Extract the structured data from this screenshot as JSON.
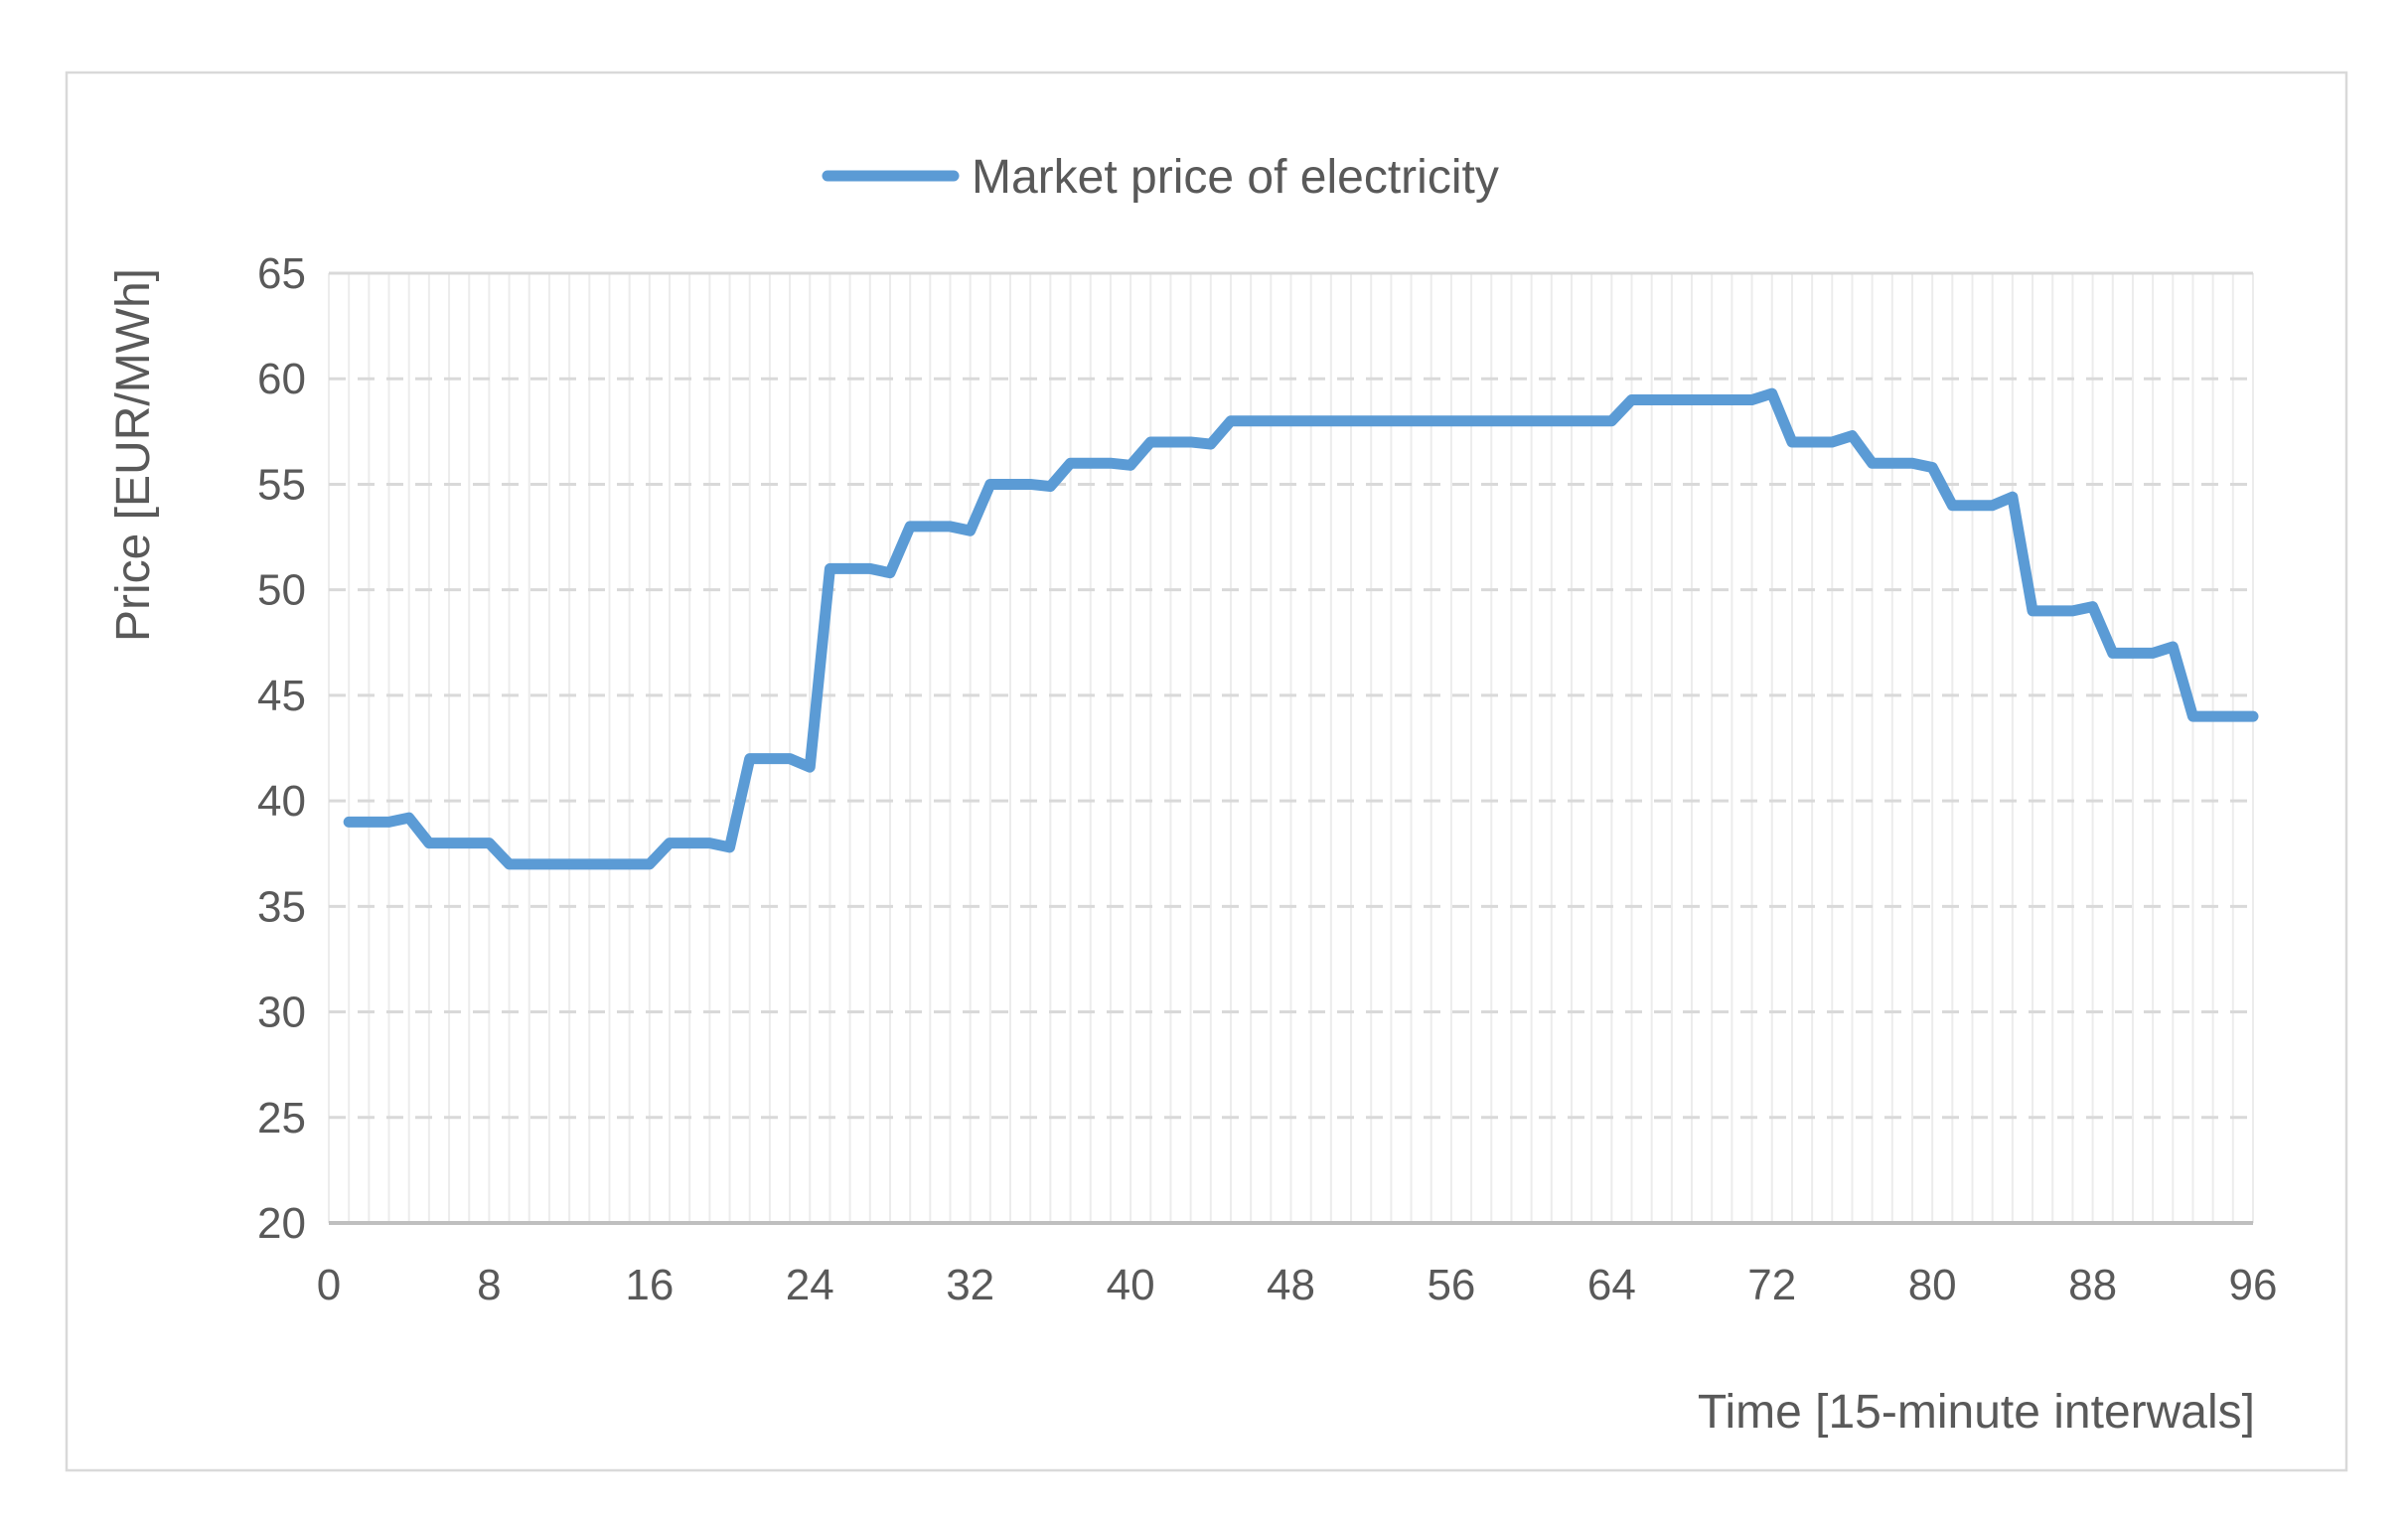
{
  "chart_style": {
    "line_color": "#5B9BD5",
    "text_color": "#595959",
    "gridline_color": "#D9D9D9",
    "minor_gridline_color": "#ECECEC",
    "axis_line_color": "#BFBFBF",
    "frame_border_color": "#D9D9D9",
    "background_color": "#FFFFFF"
  },
  "chart_data": {
    "type": "line",
    "title": "",
    "xlabel": "Time [15-minute interwals]",
    "ylabel": "Price [EUR/MWh]",
    "legend_entries": [
      "Market price of electricity"
    ],
    "legend_position": "top-center",
    "xlim": [
      0,
      96
    ],
    "ylim": [
      20,
      65
    ],
    "x_ticks": [
      0,
      8,
      16,
      24,
      32,
      40,
      48,
      56,
      64,
      72,
      80,
      88,
      96
    ],
    "y_ticks": [
      20,
      25,
      30,
      35,
      40,
      45,
      50,
      55,
      60,
      65
    ],
    "grid": "minor vertical gridlines every 1 unit; dashed horizontal gridlines every 5 units",
    "series": [
      {
        "name": "Market price of electricity",
        "x": [
          1,
          2,
          3,
          4,
          5,
          6,
          7,
          8,
          9,
          10,
          11,
          12,
          13,
          14,
          15,
          16,
          17,
          18,
          19,
          20,
          21,
          22,
          23,
          24,
          25,
          26,
          27,
          28,
          29,
          30,
          31,
          32,
          33,
          34,
          35,
          36,
          37,
          38,
          39,
          40,
          41,
          42,
          43,
          44,
          45,
          46,
          47,
          48,
          49,
          50,
          51,
          52,
          53,
          54,
          55,
          56,
          57,
          58,
          59,
          60,
          61,
          62,
          63,
          64,
          65,
          66,
          67,
          68,
          69,
          70,
          71,
          72,
          73,
          74,
          75,
          76,
          77,
          78,
          79,
          80,
          81,
          82,
          83,
          84,
          85,
          86,
          87,
          88,
          89,
          90,
          91,
          92,
          93,
          94,
          95,
          96
        ],
        "values": [
          39,
          39,
          39,
          39.2,
          38,
          38,
          38,
          38,
          37,
          37,
          37,
          37,
          37,
          37,
          37,
          37,
          38,
          38,
          38,
          37.8,
          42,
          42,
          42,
          41.6,
          51,
          51,
          51,
          50.8,
          53,
          53,
          53,
          52.8,
          55,
          55,
          55,
          54.9,
          56,
          56,
          56,
          55.9,
          57,
          57,
          57,
          56.9,
          58,
          58,
          58,
          58,
          58,
          58,
          58,
          58,
          58,
          58,
          58,
          58,
          58,
          58,
          58,
          58,
          58,
          58,
          58,
          58,
          59,
          59,
          59,
          59,
          59,
          59,
          59,
          59.3,
          57,
          57,
          57,
          57.3,
          56,
          56,
          56,
          55.8,
          54,
          54,
          54,
          54.4,
          49,
          49,
          49,
          49.2,
          47,
          47,
          47,
          47.3,
          44,
          44,
          44,
          44
        ]
      }
    ]
  }
}
